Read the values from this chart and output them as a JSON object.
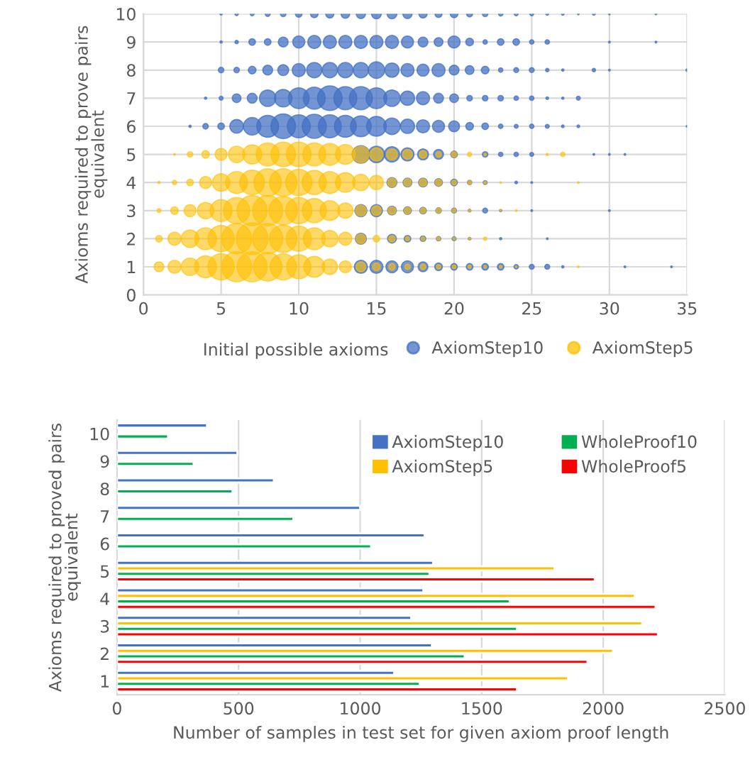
{
  "chart_data": [
    {
      "type": "bubble",
      "xlabel": "Initial possible axioms",
      "ylabel": "Axioms required to prove pairs equivalent",
      "xlim": [
        0,
        35
      ],
      "xticks": [
        0,
        5,
        10,
        15,
        20,
        25,
        30,
        35
      ],
      "ylim": [
        0,
        10
      ],
      "yticks": [
        0,
        1,
        2,
        3,
        4,
        5,
        6,
        7,
        8,
        9,
        10
      ],
      "grid": true,
      "legend": "bottom right",
      "series": [
        {
          "name": "AxiomStep10",
          "color": "#4472c4",
          "x": [
            5,
            6,
            7,
            8,
            9,
            10,
            11,
            12,
            13,
            14,
            15,
            16,
            17,
            18,
            19,
            20,
            21,
            22,
            23,
            24,
            25,
            26,
            27,
            28,
            29,
            30,
            33,
            5,
            6,
            7,
            8,
            9,
            10,
            11,
            12,
            13,
            14,
            15,
            16,
            17,
            18,
            19,
            20,
            21,
            22,
            23,
            24,
            25,
            26,
            30,
            33,
            5,
            6,
            7,
            8,
            9,
            10,
            11,
            12,
            13,
            14,
            15,
            16,
            17,
            18,
            19,
            20,
            21,
            22,
            23,
            24,
            25,
            26,
            27,
            29,
            30,
            35,
            4,
            5,
            6,
            7,
            8,
            9,
            10,
            11,
            12,
            13,
            14,
            15,
            16,
            17,
            18,
            19,
            20,
            21,
            22,
            23,
            24,
            25,
            26,
            27,
            28,
            3,
            4,
            5,
            6,
            7,
            8,
            9,
            10,
            11,
            12,
            13,
            14,
            15,
            16,
            17,
            18,
            19,
            20,
            21,
            22,
            23,
            24,
            25,
            26,
            27,
            28,
            35,
            14,
            15,
            16,
            17,
            18,
            19,
            20,
            22,
            23,
            24,
            25,
            29,
            30,
            31,
            16,
            17,
            18,
            19,
            20,
            21,
            22,
            24,
            25,
            14,
            15,
            16,
            17,
            18,
            19,
            20,
            21,
            22,
            23,
            25,
            30,
            14,
            16,
            17,
            18,
            19,
            20,
            21,
            23,
            26,
            14,
            15,
            16,
            17,
            18,
            19,
            20,
            21,
            22,
            23,
            24,
            25,
            26,
            27,
            31,
            34
          ],
          "values": [
            10,
            10,
            10,
            10,
            10,
            10,
            10,
            10,
            10,
            10,
            10,
            10,
            10,
            10,
            10,
            10,
            10,
            10,
            10,
            10,
            10,
            10,
            10,
            10,
            10,
            10,
            10,
            9,
            9,
            9,
            9,
            9,
            9,
            9,
            9,
            9,
            9,
            9,
            9,
            9,
            9,
            9,
            9,
            9,
            9,
            9,
            9,
            9,
            9,
            9,
            9,
            8,
            8,
            8,
            8,
            8,
            8,
            8,
            8,
            8,
            8,
            8,
            8,
            8,
            8,
            8,
            8,
            8,
            8,
            8,
            8,
            8,
            8,
            8,
            8,
            8,
            8,
            7,
            7,
            7,
            7,
            7,
            7,
            7,
            7,
            7,
            7,
            7,
            7,
            7,
            7,
            7,
            7,
            7,
            7,
            7,
            7,
            7,
            7,
            7,
            7,
            7,
            6,
            6,
            6,
            6,
            6,
            6,
            6,
            6,
            6,
            6,
            6,
            6,
            6,
            6,
            6,
            6,
            6,
            6,
            6,
            6,
            6,
            6,
            6,
            6,
            6,
            6,
            6,
            5,
            5,
            5,
            5,
            5,
            5,
            5,
            5,
            5,
            5,
            5,
            5,
            5,
            5,
            4,
            4,
            4,
            4,
            4,
            4,
            4,
            4,
            4,
            3,
            3,
            3,
            3,
            3,
            3,
            3,
            3,
            3,
            3,
            3,
            3,
            2,
            2,
            2,
            2,
            2,
            2,
            2,
            2,
            2,
            1,
            1,
            1,
            1,
            1,
            1,
            1,
            1,
            1,
            1,
            1,
            1,
            1,
            1,
            1,
            1
          ],
          "sizes": [
            0.005,
            0.011,
            0.015,
            0.024,
            0.03,
            0.043,
            0.058,
            0.067,
            0.076,
            0.086,
            0.096,
            0.096,
            0.086,
            0.067,
            0.05,
            0.058,
            0.036,
            0.03,
            0.019,
            0.015,
            0.015,
            0.007,
            0.007,
            0.003,
            0.007,
            0.003,
            0.003,
            0.005,
            0.011,
            0.043,
            0.043,
            0.096,
            0.144,
            0.171,
            0.171,
            0.171,
            0.171,
            0.171,
            0.171,
            0.144,
            0.096,
            0.076,
            0.144,
            0.058,
            0.019,
            0.043,
            0.043,
            0.019,
            0.019,
            0.003,
            0.003,
            0.03,
            0.03,
            0.058,
            0.096,
            0.119,
            0.171,
            0.233,
            0.233,
            0.233,
            0.233,
            0.268,
            0.201,
            0.171,
            0.144,
            0.171,
            0.096,
            0.076,
            0.058,
            0.019,
            0.024,
            0.024,
            0.011,
            0.005,
            0.011,
            0.003,
            0.005,
            0.005,
            0.015,
            0.076,
            0.096,
            0.268,
            0.304,
            0.429,
            0.476,
            0.602,
            0.524,
            0.524,
            0.429,
            0.268,
            0.201,
            0.171,
            0.096,
            0.076,
            0.03,
            0.03,
            0.03,
            0.019,
            0.019,
            0.007,
            0.005,
            0.015,
            0.005,
            0.03,
            0.043,
            0.186,
            0.304,
            0.476,
            0.602,
            0.524,
            0.576,
            0.524,
            0.476,
            0.429,
            0.385,
            0.268,
            0.201,
            0.171,
            0.144,
            0.119,
            0.058,
            0.043,
            0.019,
            0.015,
            0.019,
            0.015,
            0.007,
            0.007,
            0.003,
            0.304,
            0.268,
            0.233,
            0.171,
            0.119,
            0.096,
            0.043,
            0.03,
            0.019,
            0.019,
            0.015,
            0.003,
            0.003,
            0.003,
            0.096,
            0.076,
            0.076,
            0.058,
            0.043,
            0.019,
            0.015,
            0.007,
            0.003,
            0.144,
            0.144,
            0.076,
            0.058,
            0.043,
            0.03,
            0.024,
            0.007,
            0.024,
            0.005,
            0.003,
            0.003,
            0.119,
            0.076,
            0.043,
            0.03,
            0.019,
            0.015,
            0.007,
            0.005,
            0.003,
            0.171,
            0.171,
            0.144,
            0.144,
            0.096,
            0.058,
            0.043,
            0.043,
            0.043,
            0.043,
            0.019,
            0.024,
            0.024,
            0.005,
            0.003,
            0.003
          ]
        },
        {
          "name": "AxiomStep5",
          "color": "#ffc000",
          "x": [
            2,
            3,
            4,
            5,
            6,
            7,
            8,
            9,
            10,
            11,
            12,
            13,
            14,
            15,
            16,
            17,
            18,
            19,
            20,
            21,
            22,
            26,
            27,
            1,
            2,
            3,
            4,
            5,
            6,
            7,
            8,
            9,
            10,
            11,
            12,
            13,
            14,
            15,
            16,
            17,
            18,
            19,
            20,
            21,
            22,
            23,
            28,
            1,
            2,
            3,
            4,
            5,
            6,
            7,
            8,
            9,
            10,
            11,
            12,
            13,
            14,
            15,
            16,
            17,
            18,
            19,
            20,
            21,
            23,
            24,
            1,
            2,
            3,
            4,
            5,
            6,
            7,
            8,
            9,
            10,
            11,
            12,
            13,
            14,
            15,
            16,
            17,
            18,
            19,
            20,
            21,
            22,
            1,
            2,
            3,
            4,
            5,
            6,
            7,
            8,
            9,
            10,
            11,
            12,
            13,
            14,
            15,
            16,
            17,
            18,
            19,
            20,
            21,
            22,
            23,
            24,
            28
          ],
          "values": [
            5,
            5,
            5,
            5,
            5,
            5,
            5,
            5,
            5,
            5,
            5,
            5,
            5,
            5,
            5,
            5,
            5,
            5,
            5,
            5,
            5,
            5,
            5,
            4,
            4,
            4,
            4,
            4,
            4,
            4,
            4,
            4,
            4,
            4,
            4,
            4,
            4,
            4,
            4,
            4,
            4,
            4,
            4,
            4,
            4,
            4,
            4,
            3,
            3,
            3,
            3,
            3,
            3,
            3,
            3,
            3,
            3,
            3,
            3,
            3,
            3,
            3,
            3,
            3,
            3,
            3,
            3,
            3,
            3,
            3,
            2,
            2,
            2,
            2,
            2,
            2,
            2,
            2,
            2,
            2,
            2,
            2,
            2,
            2,
            2,
            2,
            2,
            2,
            2,
            2,
            2,
            2,
            1,
            1,
            1,
            1,
            1,
            1,
            1,
            1,
            1,
            1,
            1,
            1,
            1,
            1,
            1,
            1,
            1,
            1,
            1,
            1,
            1,
            1,
            1,
            1,
            1
          ],
          "sizes": [
            0.003,
            0.03,
            0.058,
            0.144,
            0.268,
            0.364,
            0.524,
            0.602,
            0.602,
            0.524,
            0.476,
            0.385,
            0.268,
            0.171,
            0.119,
            0.096,
            0.058,
            0.03,
            0.03,
            0.019,
            0.007,
            0.005,
            0.019,
            0.005,
            0.019,
            0.043,
            0.144,
            0.304,
            0.476,
            0.602,
            0.743,
            0.743,
            0.685,
            0.576,
            0.476,
            0.385,
            0.268,
            0.201,
            0.076,
            0.058,
            0.058,
            0.043,
            0.024,
            0.015,
            0.007,
            0.003,
            0.003,
            0.015,
            0.058,
            0.144,
            0.268,
            0.476,
            0.685,
            0.899,
            0.899,
            0.804,
            0.685,
            0.576,
            0.385,
            0.233,
            0.119,
            0.096,
            0.058,
            0.043,
            0.03,
            0.024,
            0.015,
            0.005,
            0.003,
            0.003,
            0.043,
            0.171,
            0.304,
            0.476,
            0.685,
            0.899,
            1,
            0.899,
            0.743,
            0.629,
            0.476,
            0.268,
            0.171,
            0.096,
            0.043,
            0.043,
            0.019,
            0.015,
            0.011,
            0.007,
            0.005,
            0.011,
            0.096,
            0.171,
            0.304,
            0.476,
            0.685,
            0.899,
            0.899,
            0.804,
            0.685,
            0.576,
            0.429,
            0.233,
            0.144,
            0.096,
            0.058,
            0.043,
            0.03,
            0.03,
            0.019,
            0.015,
            0.011,
            0.007,
            0.007,
            0.003,
            0.003
          ]
        }
      ]
    },
    {
      "type": "bar",
      "orientation": "horizontal",
      "xlabel": "Number of samples in test set for given axiom proof length",
      "ylabel": "Axioms required to proved pairs equivalent",
      "categories": [
        "10",
        "9",
        "8",
        "7",
        "6",
        "5",
        "4",
        "3",
        "2",
        "1"
      ],
      "xlim": [
        0,
        2500
      ],
      "xticks": [
        0,
        500,
        1000,
        1500,
        2000,
        2500
      ],
      "grid": "x",
      "legend": "top right",
      "series": [
        {
          "name": "AxiomStep10",
          "color": "#4472c4",
          "values": [
            370,
            495,
            645,
            1000,
            1265,
            1300,
            1260,
            1210,
            1295,
            1140
          ]
        },
        {
          "name": "AxiomStep5",
          "color": "#ffc000",
          "values": [
            null,
            null,
            null,
            null,
            null,
            1800,
            2130,
            2160,
            2040,
            1855
          ]
        },
        {
          "name": "WholeProof10",
          "color": "#00b050",
          "values": [
            210,
            315,
            475,
            725,
            1045,
            1285,
            1615,
            1645,
            1430,
            1245
          ]
        },
        {
          "name": "WholeProof5",
          "color": "#ff0000",
          "values": [
            null,
            null,
            null,
            null,
            null,
            1965,
            2215,
            2225,
            1935,
            1645
          ]
        }
      ]
    }
  ]
}
